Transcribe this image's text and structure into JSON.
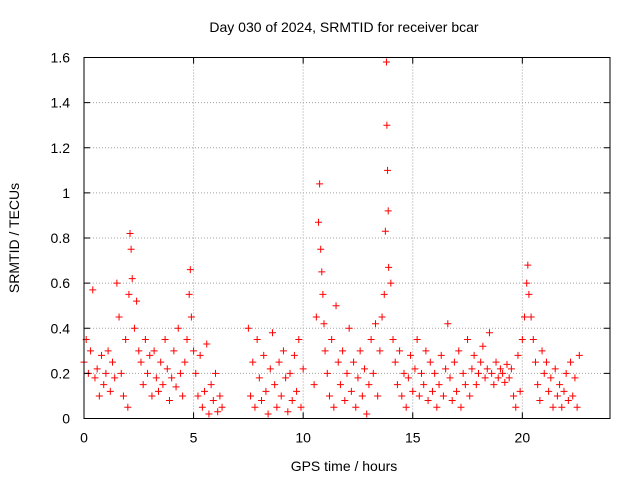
{
  "chart_data": {
    "type": "scatter",
    "title": "Day 030 of 2024, SRMTID for receiver bcar",
    "xlabel": "GPS time / hours",
    "ylabel": "SRMTID / TECUs",
    "xlim": [
      0,
      24
    ],
    "ylim": [
      0,
      1.6
    ],
    "xticks": [
      0,
      5,
      10,
      15,
      20
    ],
    "xtick_labels": [
      "0",
      "5",
      "10",
      "15",
      "20"
    ],
    "yticks": [
      0,
      0.2,
      0.4,
      0.6,
      0.8,
      1.0,
      1.2,
      1.4,
      1.6
    ],
    "ytick_labels": [
      "0",
      "0.2",
      "0.4",
      "0.6",
      "0.8",
      "1",
      "1.2",
      "1.4",
      "1.6"
    ],
    "grid": true,
    "marker": "+",
    "marker_color": "#ff0000",
    "series": [
      {
        "name": "SRMTID",
        "points": [
          [
            0.0,
            0.25
          ],
          [
            0.1,
            0.35
          ],
          [
            0.2,
            0.2
          ],
          [
            0.3,
            0.3
          ],
          [
            0.4,
            0.57
          ],
          [
            0.5,
            0.18
          ],
          [
            0.6,
            0.22
          ],
          [
            0.7,
            0.1
          ],
          [
            0.8,
            0.28
          ],
          [
            0.9,
            0.15
          ],
          [
            1.0,
            0.2
          ],
          [
            1.1,
            0.3
          ],
          [
            1.2,
            0.12
          ],
          [
            1.3,
            0.25
          ],
          [
            1.4,
            0.18
          ],
          [
            1.5,
            0.6
          ],
          [
            1.6,
            0.45
          ],
          [
            1.7,
            0.2
          ],
          [
            1.8,
            0.1
          ],
          [
            1.9,
            0.35
          ],
          [
            2.0,
            0.05
          ],
          [
            2.05,
            0.55
          ],
          [
            2.1,
            0.82
          ],
          [
            2.15,
            0.75
          ],
          [
            2.2,
            0.62
          ],
          [
            2.3,
            0.4
          ],
          [
            2.4,
            0.52
          ],
          [
            2.5,
            0.3
          ],
          [
            2.6,
            0.25
          ],
          [
            2.7,
            0.15
          ],
          [
            2.8,
            0.35
          ],
          [
            2.9,
            0.2
          ],
          [
            3.0,
            0.28
          ],
          [
            3.1,
            0.1
          ],
          [
            3.2,
            0.3
          ],
          [
            3.3,
            0.18
          ],
          [
            3.4,
            0.12
          ],
          [
            3.5,
            0.25
          ],
          [
            3.6,
            0.15
          ],
          [
            3.7,
            0.35
          ],
          [
            3.8,
            0.22
          ],
          [
            3.9,
            0.08
          ],
          [
            4.0,
            0.18
          ],
          [
            4.1,
            0.3
          ],
          [
            4.2,
            0.14
          ],
          [
            4.3,
            0.4
          ],
          [
            4.4,
            0.2
          ],
          [
            4.5,
            0.1
          ],
          [
            4.6,
            0.25
          ],
          [
            4.7,
            0.35
          ],
          [
            4.8,
            0.55
          ],
          [
            4.85,
            0.66
          ],
          [
            4.9,
            0.45
          ],
          [
            5.0,
            0.3
          ],
          [
            5.1,
            0.2
          ],
          [
            5.2,
            0.1
          ],
          [
            5.3,
            0.28
          ],
          [
            5.4,
            0.05
          ],
          [
            5.5,
            0.12
          ],
          [
            5.6,
            0.33
          ],
          [
            5.7,
            0.02
          ],
          [
            5.8,
            0.15
          ],
          [
            5.9,
            0.08
          ],
          [
            6.0,
            0.2
          ],
          [
            6.1,
            0.03
          ],
          [
            6.2,
            0.1
          ],
          [
            6.3,
            0.05
          ],
          [
            7.5,
            0.4
          ],
          [
            7.6,
            0.1
          ],
          [
            7.7,
            0.25
          ],
          [
            7.8,
            0.05
          ],
          [
            7.9,
            0.35
          ],
          [
            8.0,
            0.18
          ],
          [
            8.1,
            0.08
          ],
          [
            8.2,
            0.28
          ],
          [
            8.3,
            0.12
          ],
          [
            8.4,
            0.02
          ],
          [
            8.5,
            0.22
          ],
          [
            8.6,
            0.38
          ],
          [
            8.7,
            0.15
          ],
          [
            8.8,
            0.05
          ],
          [
            8.9,
            0.25
          ],
          [
            9.0,
            0.1
          ],
          [
            9.1,
            0.3
          ],
          [
            9.2,
            0.18
          ],
          [
            9.3,
            0.03
          ],
          [
            9.4,
            0.2
          ],
          [
            9.5,
            0.08
          ],
          [
            9.6,
            0.28
          ],
          [
            9.7,
            0.12
          ],
          [
            9.8,
            0.35
          ],
          [
            9.9,
            0.05
          ],
          [
            10.0,
            0.22
          ],
          [
            10.5,
            0.15
          ],
          [
            10.6,
            0.45
          ],
          [
            10.7,
            0.87
          ],
          [
            10.75,
            1.04
          ],
          [
            10.8,
            0.75
          ],
          [
            10.85,
            0.65
          ],
          [
            10.9,
            0.55
          ],
          [
            10.95,
            0.42
          ],
          [
            11.0,
            0.3
          ],
          [
            11.1,
            0.2
          ],
          [
            11.2,
            0.1
          ],
          [
            11.3,
            0.35
          ],
          [
            11.4,
            0.05
          ],
          [
            11.5,
            0.5
          ],
          [
            11.6,
            0.25
          ],
          [
            11.7,
            0.15
          ],
          [
            11.8,
            0.3
          ],
          [
            11.9,
            0.08
          ],
          [
            12.0,
            0.2
          ],
          [
            12.1,
            0.4
          ],
          [
            12.2,
            0.12
          ],
          [
            12.3,
            0.25
          ],
          [
            12.4,
            0.05
          ],
          [
            12.5,
            0.18
          ],
          [
            12.6,
            0.3
          ],
          [
            12.7,
            0.1
          ],
          [
            12.8,
            0.22
          ],
          [
            12.9,
            0.02
          ],
          [
            13.0,
            0.15
          ],
          [
            13.1,
            0.35
          ],
          [
            13.2,
            0.2
          ],
          [
            13.3,
            0.42
          ],
          [
            13.4,
            0.1
          ],
          [
            13.5,
            0.3
          ],
          [
            13.6,
            0.45
          ],
          [
            13.7,
            0.55
          ],
          [
            13.75,
            0.83
          ],
          [
            13.8,
            1.58
          ],
          [
            13.82,
            1.3
          ],
          [
            13.85,
            1.1
          ],
          [
            13.88,
            0.92
          ],
          [
            13.9,
            0.67
          ],
          [
            14.0,
            0.6
          ],
          [
            14.1,
            0.35
          ],
          [
            14.2,
            0.25
          ],
          [
            14.3,
            0.15
          ],
          [
            14.4,
            0.3
          ],
          [
            14.5,
            0.1
          ],
          [
            14.6,
            0.2
          ],
          [
            14.7,
            0.05
          ],
          [
            14.8,
            0.18
          ],
          [
            14.9,
            0.28
          ],
          [
            15.0,
            0.12
          ],
          [
            15.1,
            0.22
          ],
          [
            15.2,
            0.35
          ],
          [
            15.3,
            0.1
          ],
          [
            15.4,
            0.2
          ],
          [
            15.5,
            0.15
          ],
          [
            15.6,
            0.3
          ],
          [
            15.7,
            0.08
          ],
          [
            15.8,
            0.25
          ],
          [
            15.9,
            0.12
          ],
          [
            16.0,
            0.2
          ],
          [
            16.1,
            0.05
          ],
          [
            16.2,
            0.15
          ],
          [
            16.3,
            0.28
          ],
          [
            16.4,
            0.1
          ],
          [
            16.5,
            0.22
          ],
          [
            16.6,
            0.42
          ],
          [
            16.7,
            0.18
          ],
          [
            16.8,
            0.08
          ],
          [
            16.9,
            0.25
          ],
          [
            17.0,
            0.12
          ],
          [
            17.1,
            0.3
          ],
          [
            17.2,
            0.05
          ],
          [
            17.3,
            0.2
          ],
          [
            17.4,
            0.15
          ],
          [
            17.5,
            0.35
          ],
          [
            17.6,
            0.1
          ],
          [
            17.7,
            0.22
          ],
          [
            17.8,
            0.28
          ],
          [
            17.9,
            0.15
          ],
          [
            18.0,
            0.2
          ],
          [
            18.1,
            0.25
          ],
          [
            18.2,
            0.32
          ],
          [
            18.3,
            0.18
          ],
          [
            18.4,
            0.22
          ],
          [
            18.5,
            0.38
          ],
          [
            18.6,
            0.2
          ],
          [
            18.7,
            0.15
          ],
          [
            18.8,
            0.25
          ],
          [
            18.9,
            0.18
          ],
          [
            19.0,
            0.22
          ],
          [
            19.1,
            0.2
          ],
          [
            19.2,
            0.16
          ],
          [
            19.3,
            0.24
          ],
          [
            19.4,
            0.18
          ],
          [
            19.5,
            0.22
          ],
          [
            19.6,
            0.1
          ],
          [
            19.7,
            0.05
          ],
          [
            19.8,
            0.28
          ],
          [
            19.9,
            0.12
          ],
          [
            20.0,
            0.35
          ],
          [
            20.1,
            0.45
          ],
          [
            20.2,
            0.6
          ],
          [
            20.25,
            0.68
          ],
          [
            20.3,
            0.55
          ],
          [
            20.4,
            0.45
          ],
          [
            20.5,
            0.35
          ],
          [
            20.6,
            0.25
          ],
          [
            20.7,
            0.15
          ],
          [
            20.8,
            0.08
          ],
          [
            20.9,
            0.3
          ],
          [
            21.0,
            0.2
          ],
          [
            21.1,
            0.25
          ],
          [
            21.2,
            0.12
          ],
          [
            21.3,
            0.18
          ],
          [
            21.4,
            0.05
          ],
          [
            21.5,
            0.22
          ],
          [
            21.6,
            0.1
          ],
          [
            21.7,
            0.15
          ],
          [
            21.8,
            0.05
          ],
          [
            21.9,
            0.12
          ],
          [
            22.0,
            0.2
          ],
          [
            22.1,
            0.08
          ],
          [
            22.2,
            0.25
          ],
          [
            22.3,
            0.1
          ],
          [
            22.4,
            0.18
          ],
          [
            22.5,
            0.05
          ],
          [
            22.6,
            0.28
          ]
        ]
      }
    ]
  }
}
